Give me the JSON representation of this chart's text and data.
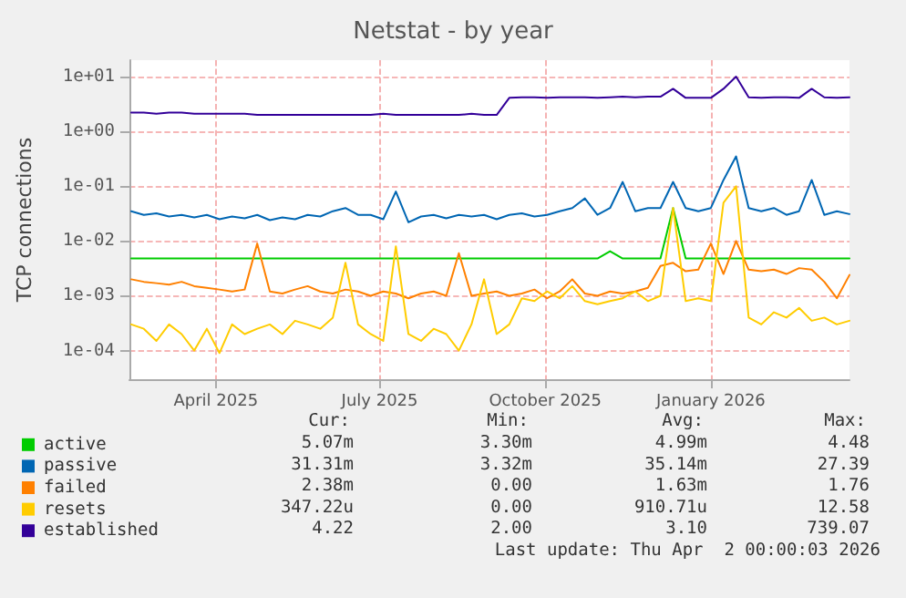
{
  "chart_data": {
    "type": "line",
    "title": "Netstat - by year",
    "ylabel": "TCP connections",
    "log": "y",
    "grid": true,
    "legend": "bottom left",
    "marker": "none",
    "line_style": "solid",
    "xlim": [
      "2025-02-26",
      "2026-04-02"
    ],
    "xticks": [
      {
        "value": "2025-04-15",
        "label": "April 2025"
      },
      {
        "value": "2025-07-15",
        "label": "July 2025"
      },
      {
        "value": "2025-10-15",
        "label": "October 2025"
      },
      {
        "value": "2026-01-15",
        "label": "January 2026"
      }
    ],
    "ylim": [
      3e-05,
      20
    ],
    "yticks": [
      {
        "value": 0.0001,
        "label": "1e-04"
      },
      {
        "value": 0.001,
        "label": "1e-03"
      },
      {
        "value": 0.01,
        "label": "1e-02"
      },
      {
        "value": 0.1,
        "label": "1e-01"
      },
      {
        "value": 1,
        "label": "1e+00"
      },
      {
        "value": 10,
        "label": "1e+01"
      }
    ],
    "x": [
      "2025-02-27",
      "2025-03-06",
      "2025-03-13",
      "2025-03-20",
      "2025-03-27",
      "2025-04-03",
      "2025-04-10",
      "2025-04-17",
      "2025-04-24",
      "2025-05-01",
      "2025-05-08",
      "2025-05-15",
      "2025-05-22",
      "2025-05-29",
      "2025-06-05",
      "2025-06-12",
      "2025-06-19",
      "2025-06-26",
      "2025-07-03",
      "2025-07-10",
      "2025-07-17",
      "2025-07-24",
      "2025-07-31",
      "2025-08-07",
      "2025-08-14",
      "2025-08-21",
      "2025-08-28",
      "2025-09-04",
      "2025-09-11",
      "2025-09-18",
      "2025-09-25",
      "2025-10-02",
      "2025-10-09",
      "2025-10-16",
      "2025-10-23",
      "2025-10-30",
      "2025-11-06",
      "2025-11-13",
      "2025-11-20",
      "2025-11-27",
      "2025-12-04",
      "2025-12-11",
      "2025-12-18",
      "2025-12-25",
      "2026-01-01",
      "2026-01-08",
      "2026-01-15",
      "2026-01-22",
      "2026-01-29",
      "2026-02-05",
      "2026-02-12",
      "2026-02-19",
      "2026-02-26",
      "2026-03-05",
      "2026-03-12",
      "2026-03-19",
      "2026-03-26",
      "2026-04-02"
    ],
    "series": [
      {
        "name": "active",
        "color": "#00cc00",
        "values": [
          0.0048,
          0.0048,
          0.0048,
          0.0048,
          0.0048,
          0.0048,
          0.0048,
          0.0048,
          0.0048,
          0.0048,
          0.0048,
          0.0048,
          0.0048,
          0.0048,
          0.0048,
          0.0048,
          0.0048,
          0.0048,
          0.0048,
          0.0048,
          0.0048,
          0.0048,
          0.0048,
          0.0048,
          0.0048,
          0.0048,
          0.0048,
          0.0048,
          0.0048,
          0.0048,
          0.0048,
          0.0048,
          0.0048,
          0.0048,
          0.0048,
          0.0048,
          0.0048,
          0.0048,
          0.0065,
          0.0048,
          0.0048,
          0.0048,
          0.0048,
          0.04,
          0.0048,
          0.0048,
          0.0048,
          0.0048,
          0.0048,
          0.0048,
          0.0048,
          0.0048,
          0.0048,
          0.0048,
          0.0048,
          0.0048,
          0.0048,
          0.0048
        ]
      },
      {
        "name": "passive",
        "color": "#0066b3",
        "values": [
          0.035,
          0.03,
          0.032,
          0.028,
          0.03,
          0.027,
          0.03,
          0.025,
          0.028,
          0.026,
          0.03,
          0.024,
          0.027,
          0.025,
          0.03,
          0.028,
          0.035,
          0.04,
          0.03,
          0.03,
          0.025,
          0.08,
          0.022,
          0.028,
          0.03,
          0.026,
          0.03,
          0.028,
          0.03,
          0.025,
          0.03,
          0.032,
          0.028,
          0.03,
          0.035,
          0.04,
          0.06,
          0.03,
          0.04,
          0.12,
          0.035,
          0.04,
          0.04,
          0.12,
          0.04,
          0.035,
          0.04,
          0.13,
          0.35,
          0.04,
          0.035,
          0.04,
          0.03,
          0.035,
          0.13,
          0.03,
          0.035,
          0.031
        ]
      },
      {
        "name": "failed",
        "color": "#ff8000",
        "values": [
          0.002,
          0.0018,
          0.0017,
          0.0016,
          0.0018,
          0.0015,
          0.0014,
          0.0013,
          0.0012,
          0.0013,
          0.009,
          0.0012,
          0.0011,
          0.0013,
          0.0015,
          0.0012,
          0.0011,
          0.0013,
          0.0012,
          0.001,
          0.0012,
          0.0011,
          0.0009,
          0.0011,
          0.0012,
          0.001,
          0.006,
          0.001,
          0.0011,
          0.0012,
          0.001,
          0.0011,
          0.0013,
          0.0009,
          0.0012,
          0.002,
          0.0011,
          0.001,
          0.0012,
          0.0011,
          0.0012,
          0.0014,
          0.0035,
          0.004,
          0.0028,
          0.003,
          0.009,
          0.0025,
          0.01,
          0.003,
          0.0028,
          0.003,
          0.0025,
          0.0032,
          0.003,
          0.0018,
          0.0009,
          0.0024
        ]
      },
      {
        "name": "resets",
        "color": "#ffcc00",
        "values": [
          0.0003,
          0.00025,
          0.00015,
          0.0003,
          0.0002,
          0.0001,
          0.00025,
          9e-05,
          0.0003,
          0.0002,
          0.00025,
          0.0003,
          0.0002,
          0.00035,
          0.0003,
          0.00025,
          0.0004,
          0.004,
          0.0003,
          0.0002,
          0.00015,
          0.008,
          0.0002,
          0.00015,
          0.00025,
          0.0002,
          0.0001,
          0.0003,
          0.002,
          0.0002,
          0.0003,
          0.0009,
          0.0008,
          0.0012,
          0.0009,
          0.0015,
          0.0008,
          0.0007,
          0.0008,
          0.0009,
          0.0012,
          0.0008,
          0.001,
          0.04,
          0.0008,
          0.0009,
          0.0008,
          0.05,
          0.1,
          0.0004,
          0.0003,
          0.0005,
          0.0004,
          0.0006,
          0.00035,
          0.0004,
          0.0003,
          0.00035
        ]
      },
      {
        "name": "established",
        "color": "#330099",
        "values": [
          2.2,
          2.2,
          2.1,
          2.2,
          2.2,
          2.1,
          2.1,
          2.1,
          2.1,
          2.1,
          2.0,
          2.0,
          2.0,
          2.0,
          2.0,
          2.0,
          2.0,
          2.0,
          2.0,
          2.0,
          2.1,
          2.0,
          2.0,
          2.0,
          2.0,
          2.0,
          2.0,
          2.1,
          2.0,
          2.0,
          4.1,
          4.2,
          4.2,
          4.1,
          4.2,
          4.2,
          4.2,
          4.1,
          4.2,
          4.3,
          4.2,
          4.3,
          4.3,
          6.0,
          4.1,
          4.1,
          4.1,
          6.0,
          10,
          4.2,
          4.1,
          4.2,
          4.2,
          4.1,
          6.0,
          4.2,
          4.1,
          4.2
        ]
      }
    ],
    "annotations": [
      "Cur:",
      "Min:",
      "Avg:",
      "Max:",
      "5.07m",
      "3.30m",
      "4.99m",
      "4.48",
      "31.31m",
      "3.32m",
      "35.14m",
      "27.39",
      "2.38m",
      "0.00",
      "1.63m",
      "1.76",
      "347.22u",
      "0.00",
      "910.71u",
      "12.58",
      "4.22",
      "2.00",
      "3.10",
      "739.07",
      "Last update: Thu Apr  2 00:00:03 2026"
    ]
  }
}
